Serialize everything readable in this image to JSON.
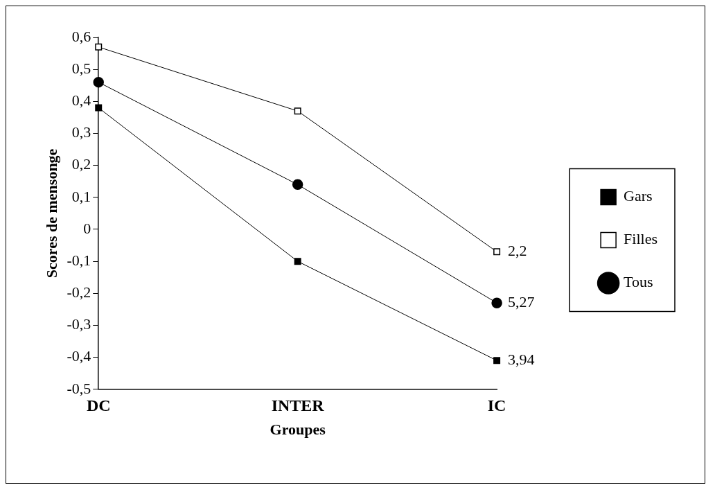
{
  "chart_data": {
    "type": "line",
    "xlabel": "Groupes",
    "ylabel": "Scores de mensonge",
    "categories": [
      "DC",
      "INTER",
      "IC"
    ],
    "series": [
      {
        "name": "Gars",
        "color": "#000000",
        "marker": "square",
        "values": [
          0.38,
          -0.1,
          -0.41
        ]
      },
      {
        "name": "Filles",
        "color": "#ffffff",
        "marker": "square",
        "values": [
          0.57,
          0.37,
          -0.07
        ]
      },
      {
        "name": "Tous",
        "color": "#000000",
        "marker": "circle",
        "values": [
          0.46,
          0.14,
          -0.23
        ]
      }
    ],
    "ylim": [
      -0.5,
      0.6
    ],
    "yticks": [
      {
        "value": -0.5,
        "label": "-0,5"
      },
      {
        "value": -0.4,
        "label": "-0,4"
      },
      {
        "value": -0.3,
        "label": "-0,3"
      },
      {
        "value": -0.2,
        "label": "-0,2"
      },
      {
        "value": -0.1,
        "label": "-0,1"
      },
      0,
      {
        "value": 0.1,
        "label": "0,1"
      },
      {
        "value": 0.2,
        "label": "0,2"
      },
      {
        "value": 0.3,
        "label": "0,3"
      },
      {
        "value": 0.4,
        "label": "0,4"
      },
      {
        "value": 0.5,
        "label": "0,5"
      },
      {
        "value": 0.6,
        "label": "0,6"
      }
    ],
    "annotations": [
      {
        "text": "2,2",
        "x": "IC",
        "y": -0.07
      },
      {
        "text": "5,27",
        "x": "IC",
        "y": -0.23
      },
      {
        "text": "3,94",
        "x": "IC",
        "y": -0.41
      }
    ],
    "grid": false,
    "legend": "right"
  }
}
